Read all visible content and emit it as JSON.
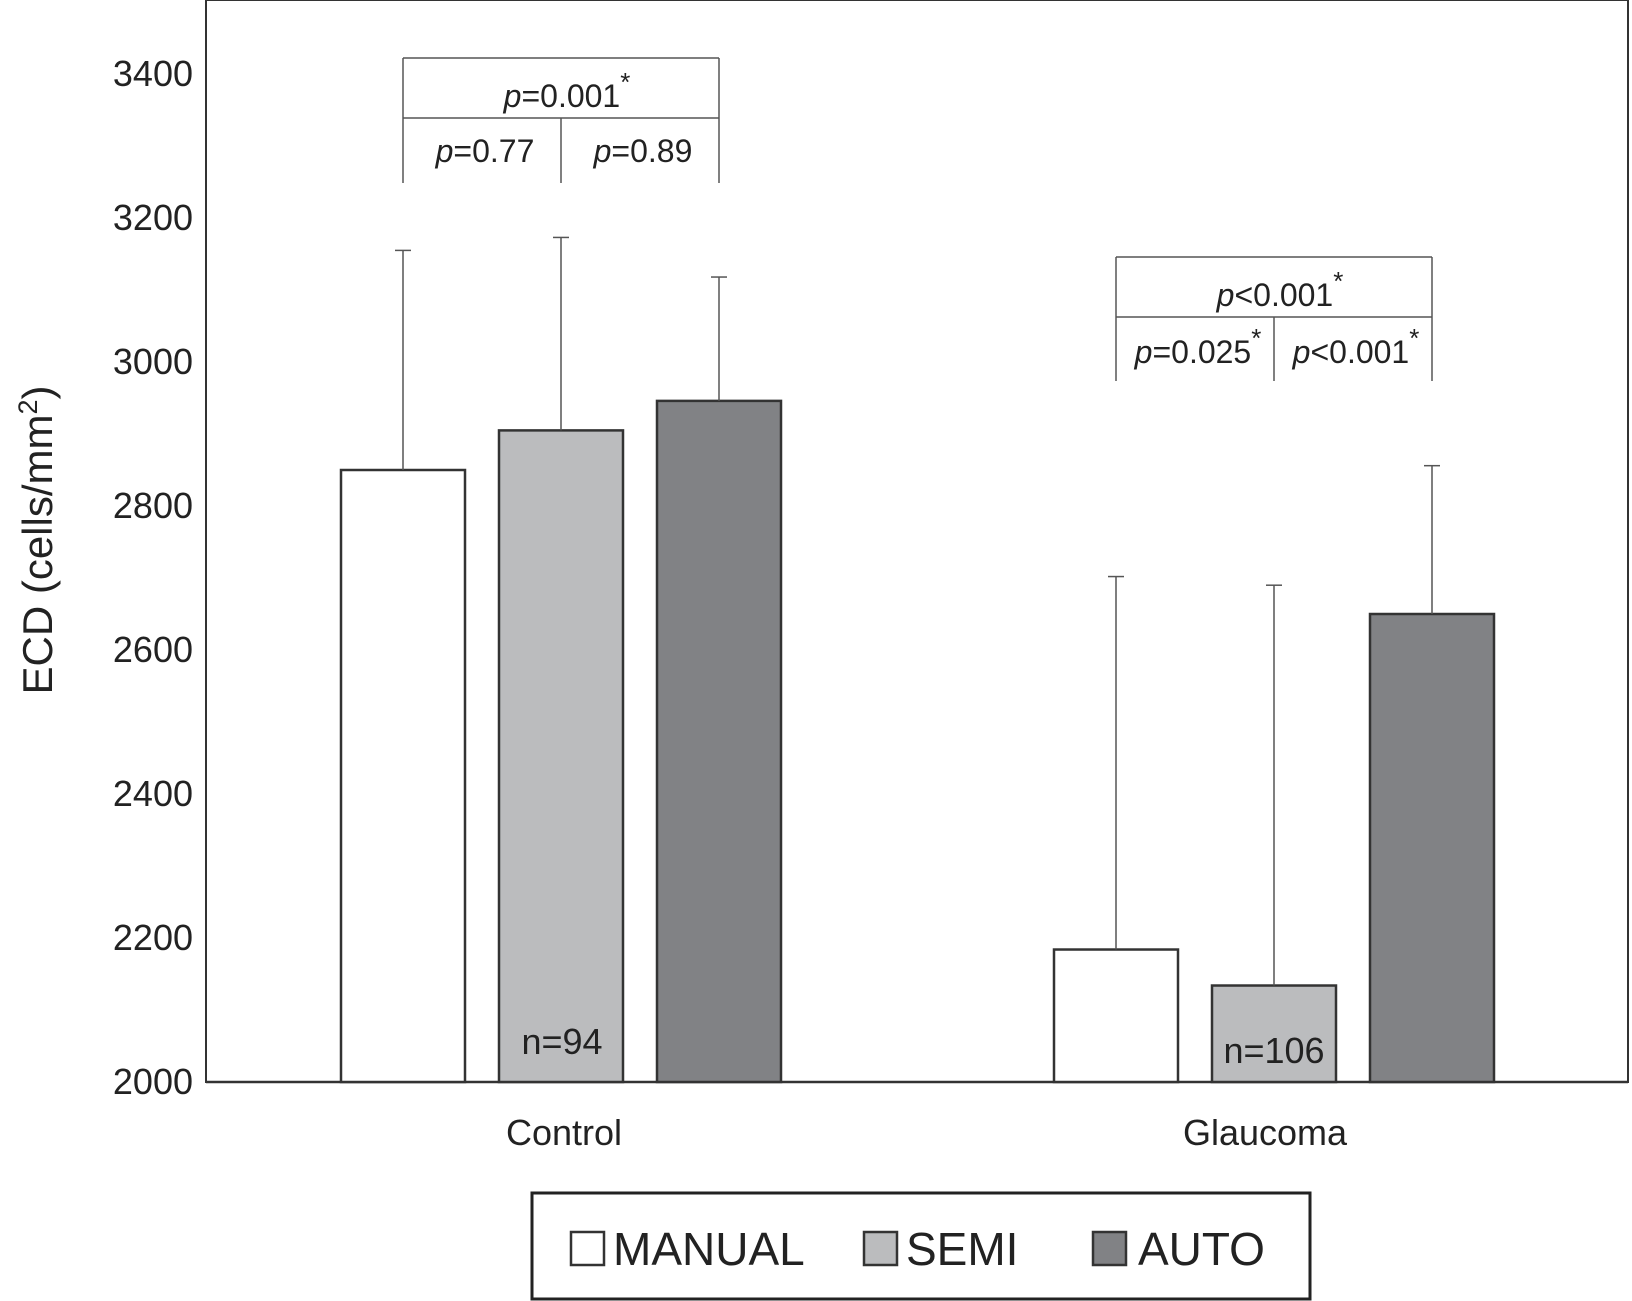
{
  "chart_data": {
    "type": "bar",
    "categories": [
      "Control",
      "Glaucoma"
    ],
    "ylabel": "ECD (cells/mm",
    "ylabel_superscript": "2",
    "ylabel_close": ")",
    "ylim": [
      2000,
      3500
    ],
    "yticks": [
      "2000",
      "2200",
      "2400",
      "2600",
      "2800",
      "3000",
      "3200",
      "3400"
    ],
    "grid": false,
    "legend_position": "bottom",
    "series": [
      {
        "name": "MANUAL",
        "color": "#ffffff",
        "values": [
          2850,
          2184
        ],
        "error_upper": [
          3155,
          2702
        ]
      },
      {
        "name": "SEMI",
        "color": "#bbbcbe",
        "values": [
          2905,
          2134
        ],
        "error_upper": [
          3173,
          2690
        ]
      },
      {
        "name": "AUTO",
        "color": "#818285",
        "values": [
          2946,
          2650
        ],
        "error_upper": [
          3118,
          2856
        ]
      }
    ],
    "n_labels": [
      "n=94",
      "n=106"
    ],
    "significance": [
      {
        "top": {
          "prefix": "p",
          "text": "=0.001",
          "star": "*"
        },
        "left": {
          "prefix": "p",
          "text": "=0.77",
          "star": ""
        },
        "right": {
          "prefix": "p",
          "text": "=0.89",
          "star": ""
        }
      },
      {
        "top": {
          "prefix": "p",
          "text": "<0.001",
          "star": "*"
        },
        "left": {
          "prefix": "p",
          "text": "=0.025",
          "star": "*"
        },
        "right": {
          "prefix": "p",
          "text": "<0.001",
          "star": "*"
        }
      }
    ]
  }
}
